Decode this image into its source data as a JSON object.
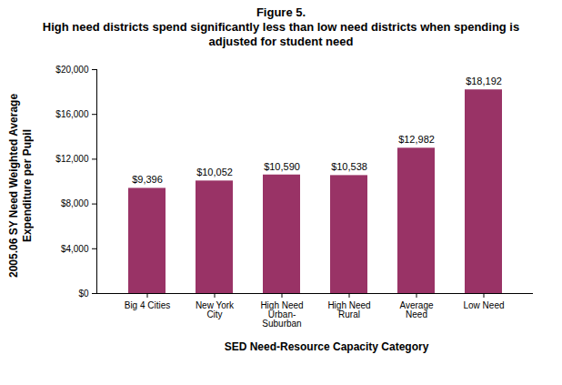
{
  "chart_data": {
    "type": "bar",
    "title": "Figure 5.",
    "subtitle": "High need districts spend significantly less than low need districts when spending is adjusted for student need",
    "x_label": "SED Need-Resource Capacity Category",
    "y_label": "2005.06 SY Need Weighted Average Expenditure per Pupil",
    "categories": [
      "Big 4 Cities",
      "New York City",
      "High Need Urban-Suburban",
      "High Need Rural",
      "Average Need",
      "Low Need"
    ],
    "values": [
      9396,
      10052,
      10590,
      10538,
      12982,
      18192
    ],
    "value_labels": [
      "$9,396",
      "$10,052",
      "$10,590",
      "$10,538",
      "$12,982",
      "$18,192"
    ],
    "data_labels": true,
    "color": "#993366",
    "ylim": [
      0,
      20000
    ],
    "yticks": [
      {
        "value": 0,
        "label": "$0"
      },
      {
        "value": 4000,
        "label": "$4,000"
      },
      {
        "value": 8000,
        "label": "$8,000"
      },
      {
        "value": 12000,
        "label": "$12,000"
      },
      {
        "value": 16000,
        "label": "$16,000"
      },
      {
        "value": 20000,
        "label": "$20,000"
      }
    ],
    "grid": false
  }
}
